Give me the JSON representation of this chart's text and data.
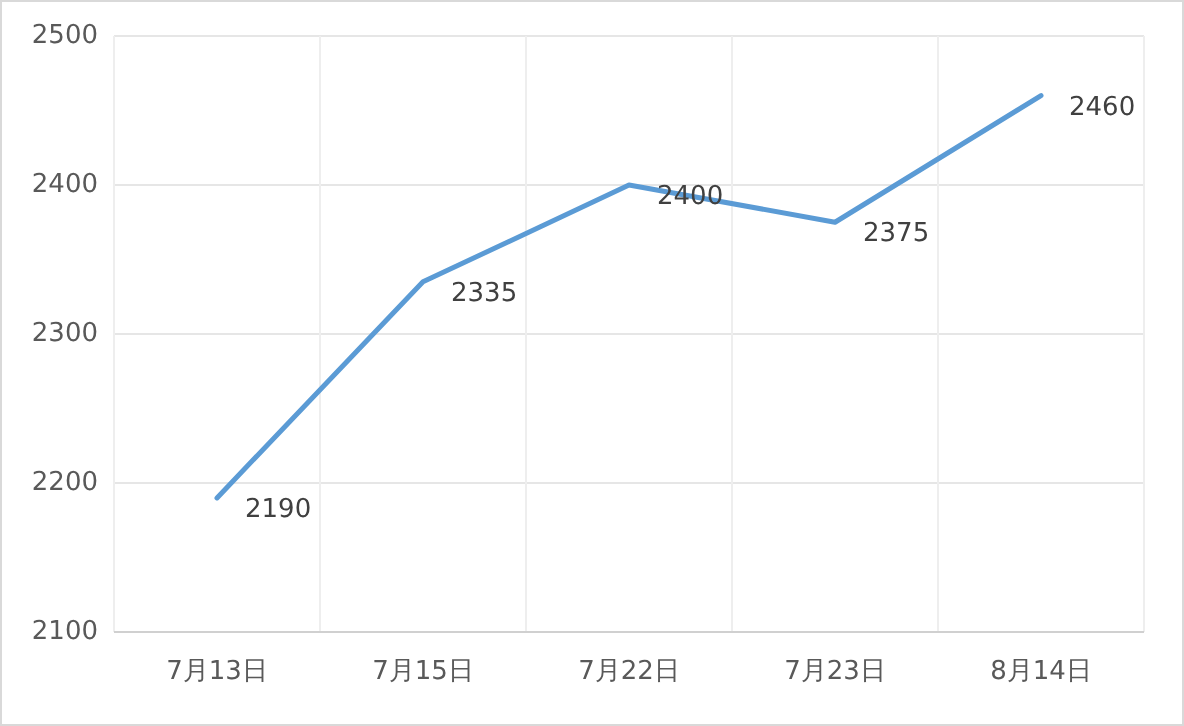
{
  "chart_data": {
    "type": "line",
    "categories": [
      "7月13日",
      "7月15日",
      "7月22日",
      "7月23日",
      "8月14日"
    ],
    "series": [
      {
        "color": "#5b9bd5",
        "values": [
          2190,
          2335,
          2400,
          2375,
          2460
        ]
      }
    ],
    "ylim": [
      2100,
      2500
    ],
    "yticks": [
      2100,
      2200,
      2300,
      2400,
      2500
    ],
    "grid": true,
    "data_labels": true,
    "marker": "none",
    "line_style": "solid"
  }
}
